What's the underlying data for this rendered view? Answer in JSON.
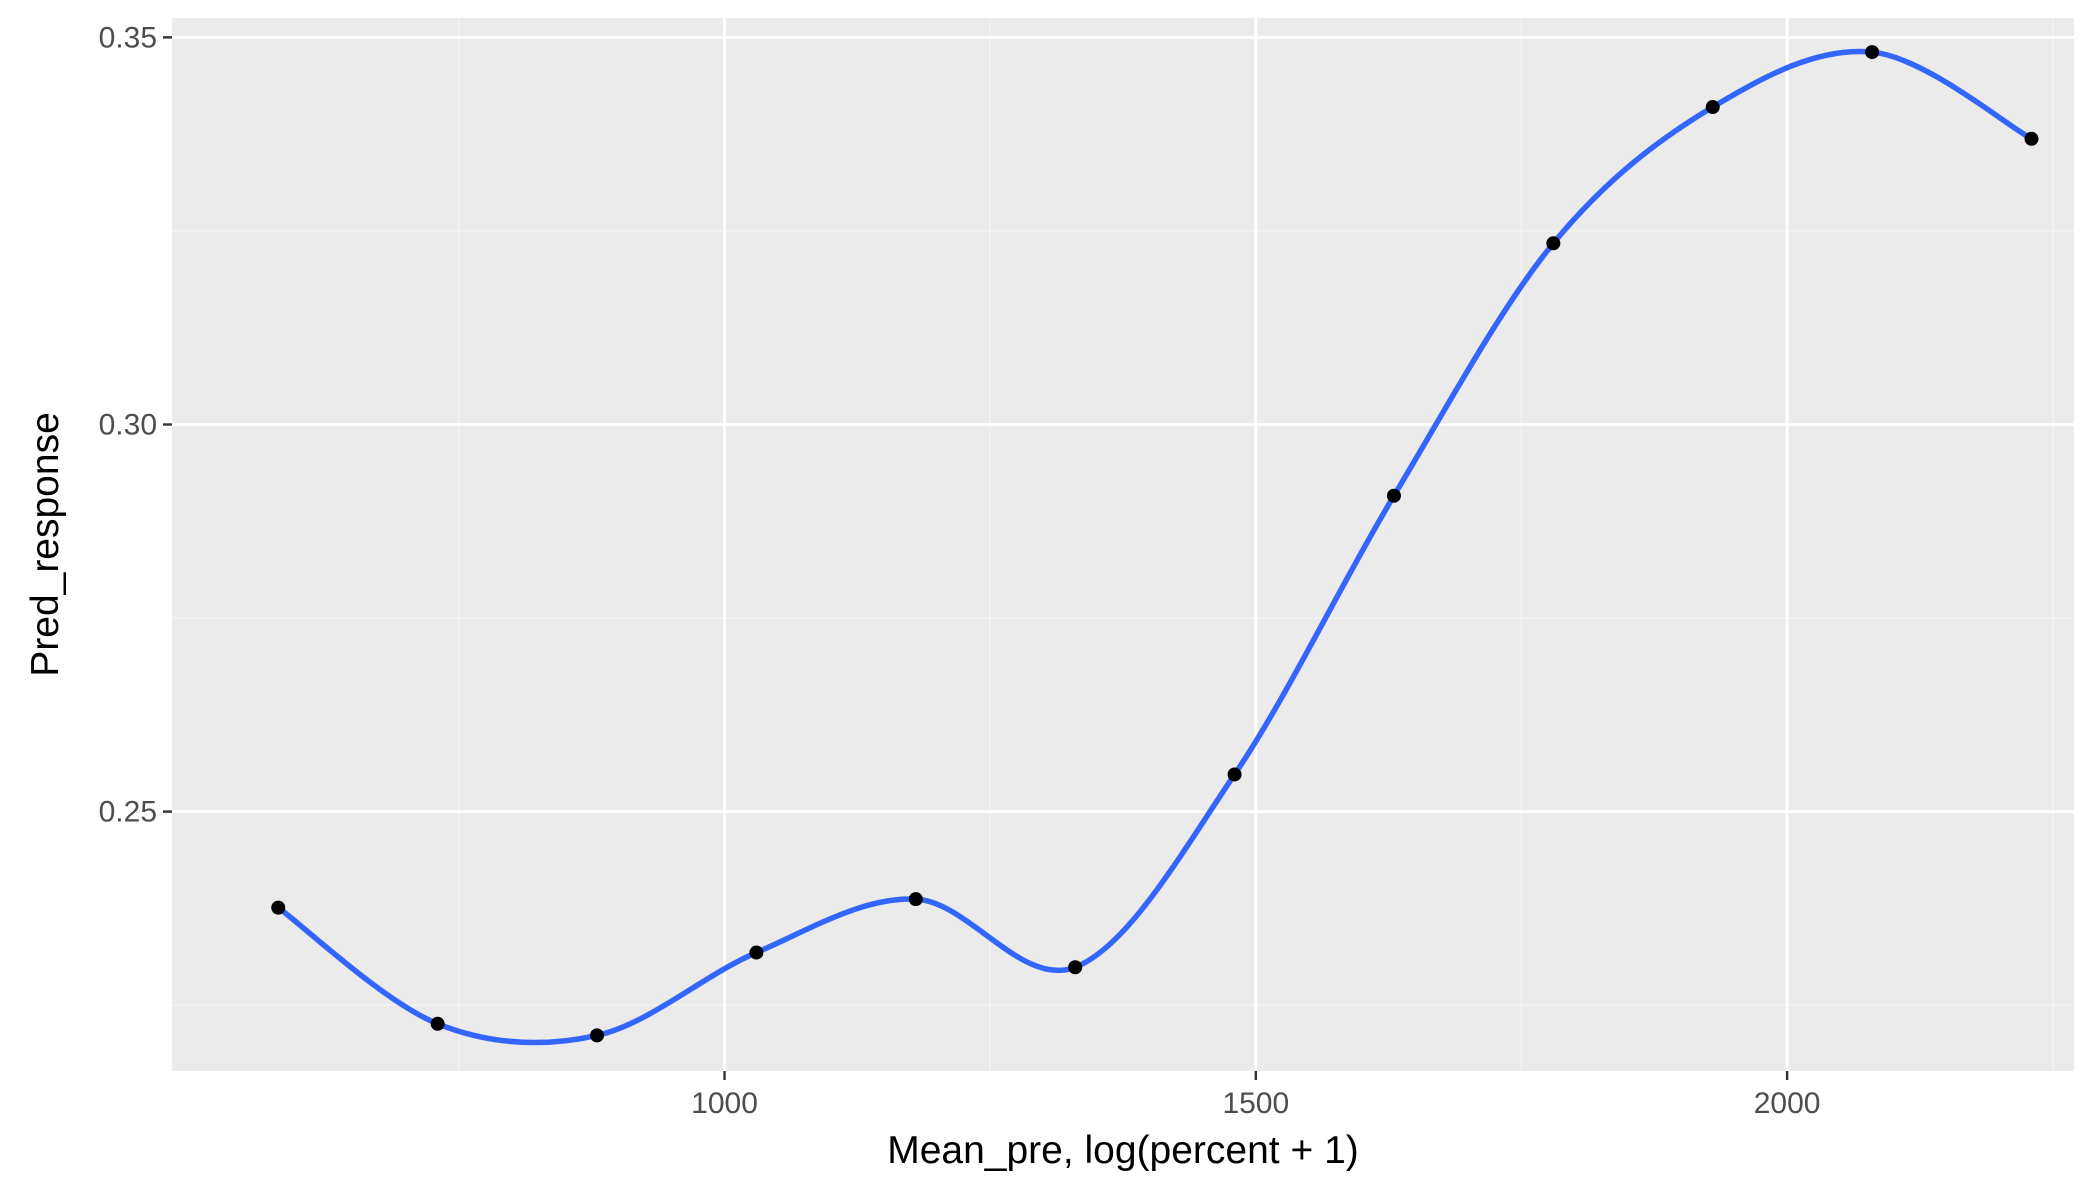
{
  "chart_data": {
    "type": "line",
    "title": "",
    "xlabel": "Mean_pre, log(percent + 1)",
    "ylabel": "Pred_response",
    "xlim": [
      480,
      2270
    ],
    "ylim": [
      0.2165,
      0.3525
    ],
    "x_ticks": [
      1000,
      1500,
      2000
    ],
    "x_tick_labels": [
      "1000",
      "1500",
      "2000"
    ],
    "x_minor_ticks": [
      750,
      1250,
      1750,
      2250
    ],
    "y_ticks": [
      0.25,
      0.3,
      0.35
    ],
    "y_tick_labels": [
      "0.25",
      "0.30",
      "0.35"
    ],
    "y_minor_ticks": [
      0.225,
      0.275,
      0.325
    ],
    "grid": true,
    "legend": "none",
    "series": [
      {
        "x": [
          580,
          730,
          880,
          1030,
          1180,
          1330,
          1480,
          1630,
          1780,
          1930,
          2080,
          2230
        ],
        "values": [
          0.2376,
          0.2226,
          0.2211,
          0.2318,
          0.2387,
          0.2299,
          0.2548,
          0.2908,
          0.3234,
          0.341,
          0.3481,
          0.3369
        ]
      }
    ],
    "colors": {
      "panel_background": "#ebebeb",
      "grid_major": "#ffffff",
      "grid_minor": "#f5f5f5",
      "line": "#3366ff",
      "points": "#000000",
      "axis_text": "#4d4d4d",
      "axis_title": "#000000"
    }
  }
}
